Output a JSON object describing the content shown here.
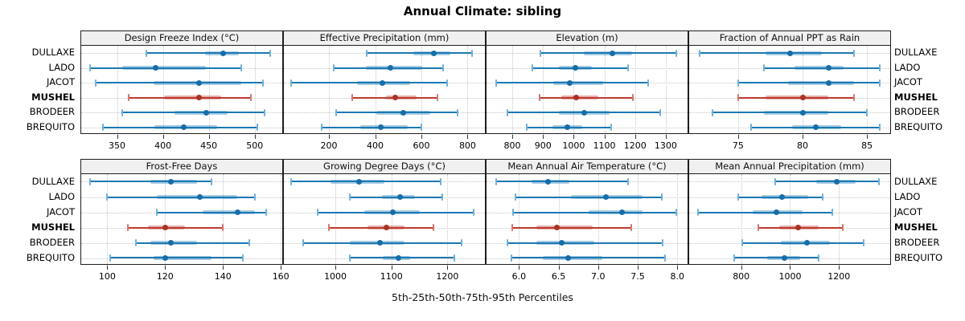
{
  "title": "Annual Climate: sibling",
  "caption": "5th-25th-50th-75th-95th Percentiles",
  "sites": [
    "DULLAXE",
    "LADO",
    "JACOT",
    "MUSHEL",
    "BRODEER",
    "BREQUITO"
  ],
  "highlight_site": "MUSHEL",
  "colors": {
    "normal_line": "#1b78b5",
    "normal_band": "rgba(27,120,181,0.38)",
    "normal_cap": "#6fb0da",
    "normal_dot": "#166da8",
    "highlight_line": "#bf3a2f",
    "highlight_band": "rgba(191,58,47,0.40)",
    "highlight_cap": "#d3766d",
    "highlight_dot": "#a93226",
    "grid": "#c6c6c6",
    "header_bg": "#f0f0f0",
    "panel_border": "#1f1f1f"
  },
  "chart_data": {
    "type": "trellis-percentile-dotplot",
    "percentiles": [
      5,
      25,
      50,
      75,
      95
    ],
    "legend_note": "values per site are [5th, 25th, 50th, 75th, 95th] percentiles",
    "panels": [
      {
        "title": "Design Freeze Index (°C)",
        "xlim": [
          311,
          530
        ],
        "ticks": [
          "350",
          "400",
          "450",
          "500"
        ],
        "series": {
          "DULLAXE": [
            382,
            446,
            466,
            483,
            517
          ],
          "LADO": [
            321,
            356,
            392,
            447,
            485
          ],
          "JACOT": [
            327,
            390,
            439,
            485,
            509
          ],
          "MUSHEL": [
            363,
            401,
            439,
            463,
            496
          ],
          "BRODEER": [
            356,
            413,
            447,
            470,
            511
          ],
          "BREQUITO": [
            335,
            391,
            423,
            459,
            503
          ]
        }
      },
      {
        "title": "Effective Precipitation (mm)",
        "xlim": [
          5,
          875
        ],
        "ticks": [
          "200",
          "400",
          "600",
          "800"
        ],
        "series": {
          "DULLAXE": [
            365,
            565,
            655,
            725,
            820
          ],
          "LADO": [
            220,
            360,
            465,
            605,
            695
          ],
          "JACOT": [
            35,
            320,
            433,
            553,
            710
          ],
          "MUSHEL": [
            300,
            447,
            488,
            580,
            668
          ],
          "BRODEER": [
            230,
            405,
            523,
            640,
            758
          ],
          "BREQUITO": [
            170,
            335,
            424,
            540,
            600
          ]
        }
      },
      {
        "title": "Elevation (m)",
        "xlim": [
          716,
          1371
        ],
        "ticks": [
          "800",
          "900",
          "1000",
          "1100",
          "1200",
          "1300"
        ],
        "series": {
          "DULLAXE": [
            892,
            1034,
            1126,
            1190,
            1334
          ],
          "LADO": [
            866,
            953,
            1005,
            1060,
            1176
          ],
          "JACOT": [
            747,
            934,
            987,
            1097,
            1242
          ],
          "MUSHEL": [
            889,
            960,
            1008,
            1081,
            1194
          ],
          "BRODEER": [
            784,
            953,
            1034,
            1116,
            1281
          ],
          "BREQUITO": [
            847,
            932,
            979,
            1029,
            1123
          ]
        }
      },
      {
        "title": "Fraction of Annual PPT as Rain",
        "xlim": [
          71.2,
          86.8
        ],
        "ticks": [
          "75",
          "80",
          "85"
        ],
        "series": {
          "DULLAXE": [
            72,
            77.1,
            79,
            81.5,
            84
          ],
          "LADO": [
            77,
            79.4,
            82,
            83.2,
            86
          ],
          "JACOT": [
            75,
            78.9,
            82,
            84,
            86
          ],
          "MUSHEL": [
            75,
            77.1,
            80,
            82,
            84
          ],
          "BRODEER": [
            73,
            77,
            80,
            82,
            85
          ],
          "BREQUITO": [
            76,
            79.2,
            81,
            83,
            86
          ]
        }
      },
      {
        "title": "Frost-Free Days",
        "xlim": [
          91,
          160.5
        ],
        "ticks": [
          "100",
          "120",
          "140",
          "160"
        ],
        "series": {
          "DULLAXE": [
            94,
            115,
            122,
            131,
            136
          ],
          "LADO": [
            100,
            117,
            132,
            145,
            151
          ],
          "JACOT": [
            117,
            133,
            145,
            151,
            155
          ],
          "MUSHEL": [
            107,
            114,
            120,
            127,
            140
          ],
          "BRODEER": [
            110,
            115,
            122,
            131,
            149
          ],
          "BREQUITO": [
            101,
            116,
            120,
            136,
            147
          ]
        }
      },
      {
        "title": "Growing Degree Days (°C)",
        "xlim": [
          908,
          1267
        ],
        "ticks": [
          "1000",
          "1100",
          "1200"
        ],
        "series": {
          "DULLAXE": [
            921,
            991,
            1042,
            1088,
            1188
          ],
          "LADO": [
            1026,
            1083,
            1115,
            1142,
            1191
          ],
          "JACOT": [
            968,
            1051,
            1102,
            1150,
            1247
          ],
          "MUSHEL": [
            988,
            1057,
            1091,
            1123,
            1175
          ],
          "BRODEER": [
            943,
            1026,
            1079,
            1124,
            1226
          ],
          "BREQUITO": [
            1026,
            1085,
            1112,
            1134,
            1212
          ]
        }
      },
      {
        "title": "Mean Annual Air Temperature (°C)",
        "xlim": [
          5.59,
          8.13
        ],
        "ticks": [
          "6.0",
          "6.5",
          "7.0",
          "7.5",
          "8.0"
        ],
        "series": {
          "DULLAXE": [
            5.71,
            6.16,
            6.37,
            6.64,
            7.38
          ],
          "LADO": [
            5.96,
            6.66,
            7.1,
            7.56,
            7.8
          ],
          "JACOT": [
            5.93,
            6.88,
            7.3,
            7.56,
            7.99
          ],
          "MUSHEL": [
            5.92,
            6.22,
            6.48,
            6.93,
            7.42
          ],
          "BRODEER": [
            5.85,
            6.22,
            6.54,
            6.95,
            7.81
          ],
          "BREQUITO": [
            5.91,
            6.3,
            6.62,
            7.05,
            7.85
          ]
        }
      },
      {
        "title": "Mean Annual Precipitation (mm)",
        "xlim": [
          587,
          1410
        ],
        "ticks": [
          "800",
          "1000",
          "1200"
        ],
        "series": {
          "DULLAXE": [
            940,
            1107,
            1190,
            1267,
            1363
          ],
          "LADO": [
            787,
            883,
            967,
            1073,
            1133
          ],
          "JACOT": [
            623,
            847,
            943,
            1050,
            1173
          ],
          "MUSHEL": [
            870,
            957,
            1033,
            1117,
            1217
          ],
          "BRODEER": [
            803,
            963,
            1070,
            1163,
            1303
          ],
          "BREQUITO": [
            770,
            907,
            977,
            1040,
            1117
          ]
        }
      }
    ]
  }
}
